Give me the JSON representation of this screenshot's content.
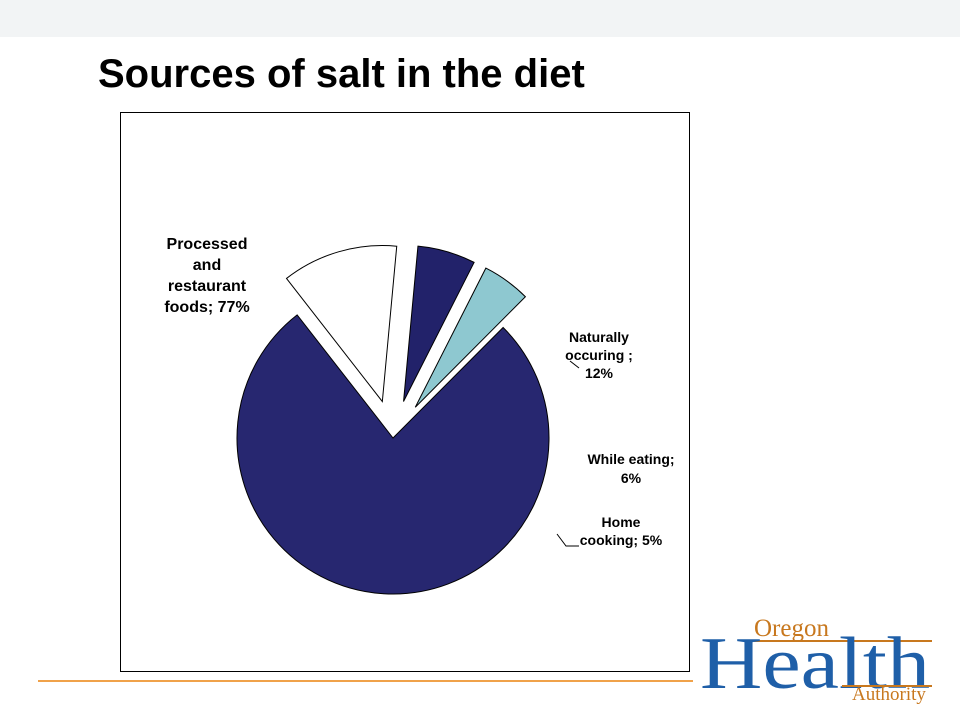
{
  "slide": {
    "title": "Sources of salt in the diet"
  },
  "logo": {
    "line1": "Oregon",
    "line2": "Health",
    "line3": "Authority",
    "color_blue": "#1f5fa8",
    "color_gold": "#c8781e"
  },
  "colors": {
    "footer_rule": "#f0a24a",
    "top_band": "#f2f4f5"
  },
  "chart_data": {
    "type": "pie",
    "title": "",
    "slices": [
      {
        "name": "Processed and restaurant foods",
        "value": 77,
        "label_lines": [
          "Processed",
          "and",
          "restaurant",
          "foods; 77%"
        ],
        "color": "#272770",
        "exploded": false
      },
      {
        "name": "Naturally occuring",
        "value": 12,
        "label_lines": [
          "Naturally",
          "occuring ;",
          "12%"
        ],
        "color": "#ffffff",
        "exploded": true
      },
      {
        "name": "While eating",
        "value": 6,
        "label_lines": [
          "While eating;",
          "6%"
        ],
        "color": "#22226a",
        "exploded": true
      },
      {
        "name": "Home cooking",
        "value": 5,
        "label_lines": [
          "Home",
          "cooking; 5%"
        ],
        "color": "#8ec8d0",
        "exploded": true
      }
    ]
  }
}
